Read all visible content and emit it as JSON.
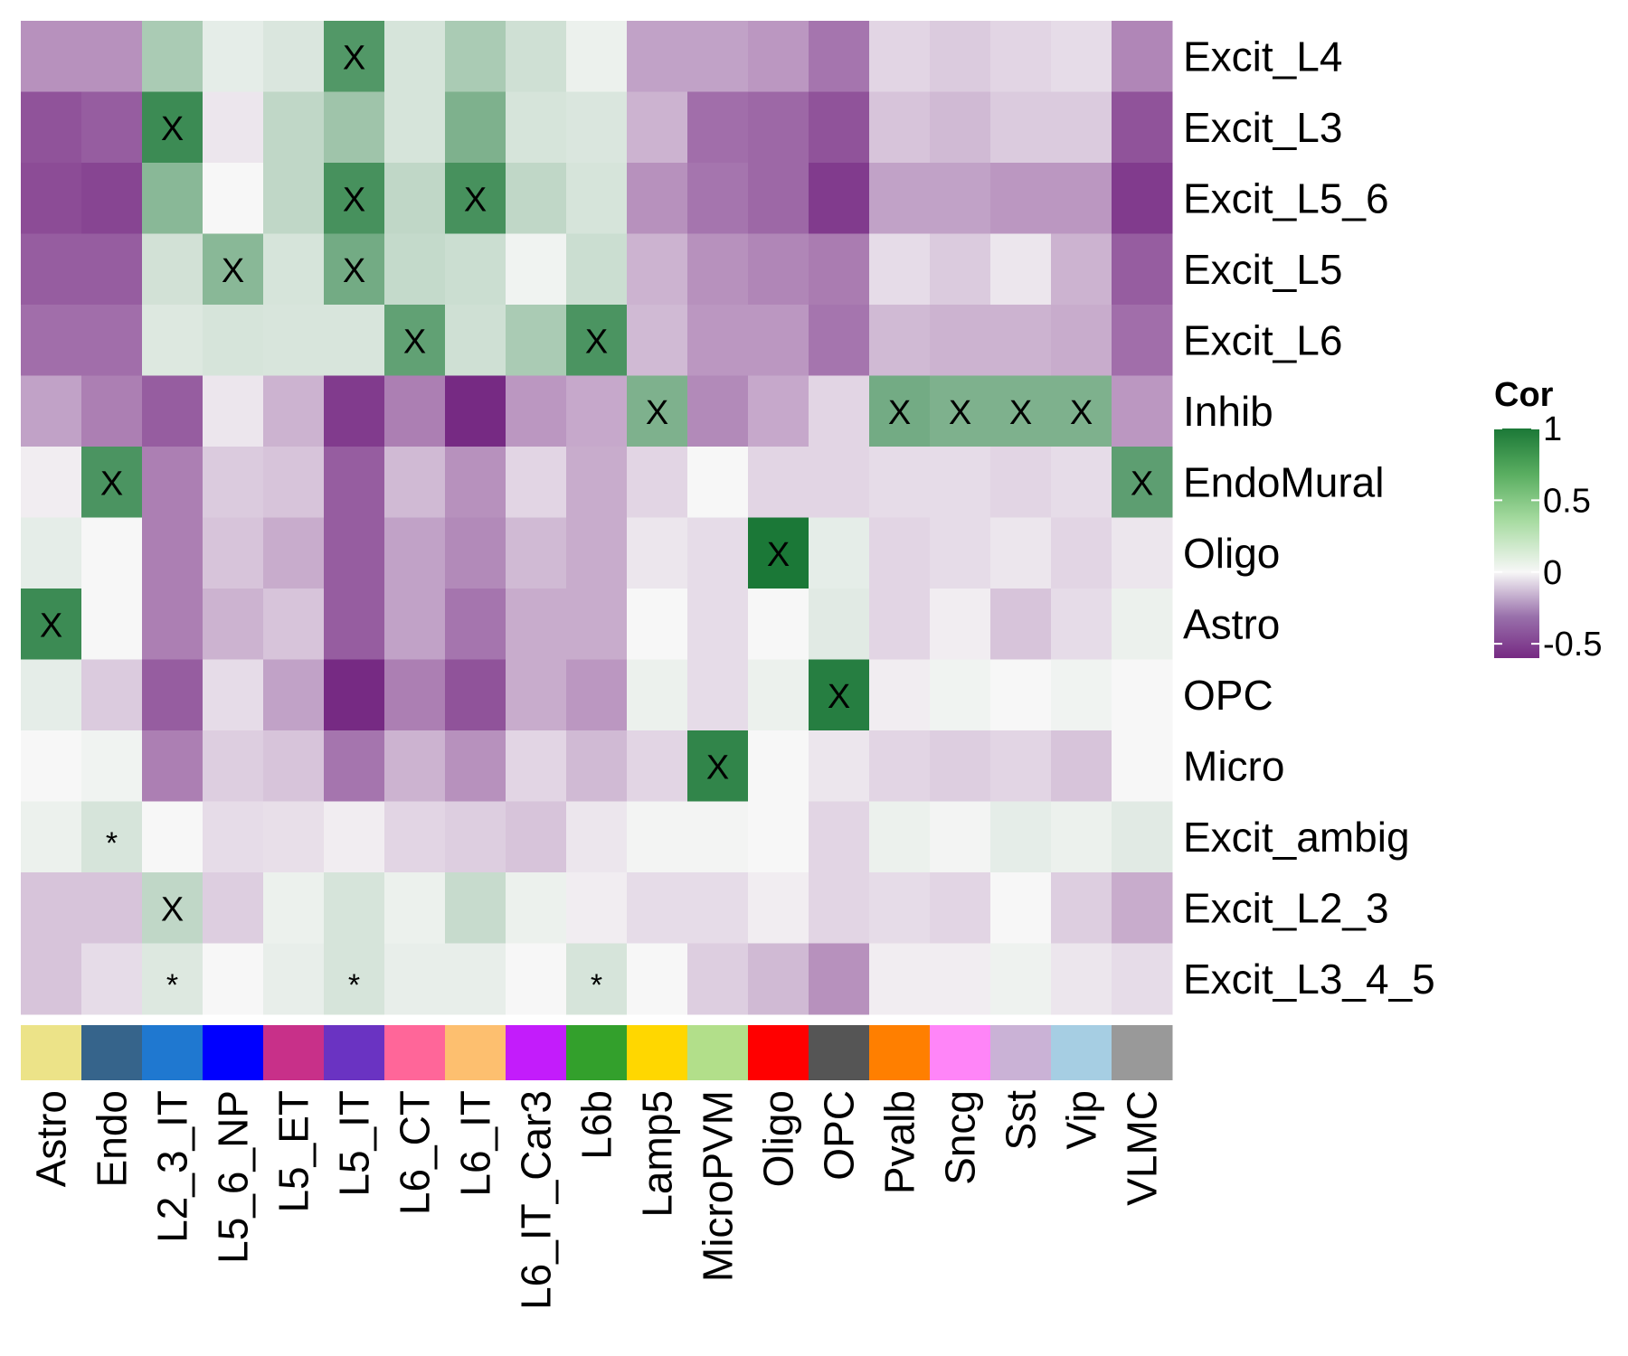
{
  "chart_data": {
    "type": "heatmap",
    "title": "",
    "xlabel": "",
    "ylabel": "",
    "columns": [
      "Astro",
      "Endo",
      "L2_3_IT",
      "L5_6_NP",
      "L5_ET",
      "L5_IT",
      "L6_CT",
      "L6_IT",
      "L6_IT_Car3",
      "L6b",
      "Lamp5",
      "MicroPVM",
      "Oligo",
      "OPC",
      "Pvalb",
      "Sncg",
      "Sst",
      "Vip",
      "VLMC"
    ],
    "column_colors": [
      "#ECE388",
      "#36648B",
      "#1F78D0",
      "#0000FF",
      "#C83089",
      "#6A33C2",
      "#FF6699",
      "#FDBF6F",
      "#C31CFB",
      "#33A02C",
      "#FFD700",
      "#B2DF8A",
      "#FF0000",
      "#555555",
      "#FF7F00",
      "#FF85F8",
      "#CAB2D6",
      "#A6CEE3",
      "#999999"
    ],
    "rows": [
      "Excit_L4",
      "Excit_L3",
      "Excit_L5_6",
      "Excit_L5",
      "Excit_L6",
      "Inhib",
      "EndoMural",
      "Oligo",
      "Astro",
      "OPC",
      "Micro",
      "Excit_ambig",
      "Excit_L2_3",
      "Excit_L3_4_5"
    ],
    "values": [
      [
        -0.3,
        -0.3,
        0.35,
        0.08,
        0.13,
        0.75,
        0.15,
        0.35,
        0.18,
        0.05,
        -0.25,
        -0.25,
        -0.28,
        -0.38,
        -0.1,
        -0.13,
        -0.1,
        -0.08,
        -0.33
      ],
      [
        -0.48,
        -0.45,
        0.85,
        -0.05,
        0.25,
        0.4,
        0.15,
        0.55,
        0.15,
        0.13,
        -0.2,
        -0.4,
        -0.42,
        -0.48,
        -0.15,
        -0.18,
        -0.13,
        -0.13,
        -0.48
      ],
      [
        -0.5,
        -0.52,
        0.5,
        0.0,
        0.25,
        0.8,
        0.25,
        0.8,
        0.25,
        0.15,
        -0.3,
        -0.38,
        -0.42,
        -0.55,
        -0.25,
        -0.25,
        -0.28,
        -0.28,
        -0.55
      ],
      [
        -0.45,
        -0.45,
        0.17,
        0.5,
        0.15,
        0.6,
        0.23,
        0.2,
        0.03,
        0.2,
        -0.2,
        -0.3,
        -0.33,
        -0.36,
        -0.08,
        -0.13,
        -0.05,
        -0.2,
        -0.45
      ],
      [
        -0.4,
        -0.4,
        0.12,
        0.15,
        0.14,
        0.14,
        0.68,
        0.18,
        0.35,
        0.78,
        -0.18,
        -0.28,
        -0.28,
        -0.38,
        -0.18,
        -0.2,
        -0.2,
        -0.22,
        -0.4
      ],
      [
        -0.25,
        -0.35,
        -0.45,
        -0.05,
        -0.2,
        -0.55,
        -0.35,
        -0.6,
        -0.28,
        -0.23,
        0.55,
        -0.32,
        -0.23,
        -0.1,
        0.6,
        0.55,
        0.55,
        0.55,
        -0.28
      ],
      [
        -0.03,
        0.78,
        -0.35,
        -0.13,
        -0.15,
        -0.45,
        -0.18,
        -0.3,
        -0.1,
        -0.22,
        -0.1,
        0.0,
        -0.1,
        -0.1,
        -0.08,
        -0.08,
        -0.1,
        -0.08,
        0.7
      ],
      [
        0.08,
        0.0,
        -0.35,
        -0.15,
        -0.22,
        -0.45,
        -0.25,
        -0.32,
        -0.18,
        -0.22,
        -0.05,
        -0.08,
        1.0,
        0.08,
        -0.1,
        -0.08,
        -0.05,
        -0.1,
        -0.05
      ],
      [
        0.85,
        0.0,
        -0.35,
        -0.2,
        -0.15,
        -0.45,
        -0.25,
        -0.38,
        -0.22,
        -0.22,
        0.0,
        -0.08,
        0.0,
        0.1,
        -0.1,
        -0.03,
        -0.15,
        -0.08,
        0.05
      ],
      [
        0.08,
        -0.13,
        -0.45,
        -0.08,
        -0.25,
        -0.6,
        -0.35,
        -0.48,
        -0.22,
        -0.28,
        0.05,
        -0.08,
        0.05,
        0.95,
        -0.03,
        0.03,
        0.0,
        0.03,
        0.0
      ],
      [
        0.0,
        0.03,
        -0.35,
        -0.12,
        -0.15,
        -0.38,
        -0.2,
        -0.3,
        -0.1,
        -0.18,
        -0.1,
        0.9,
        0.0,
        -0.05,
        -0.1,
        -0.12,
        -0.1,
        -0.15,
        0.0
      ],
      [
        0.05,
        0.15,
        0.0,
        -0.08,
        -0.07,
        -0.03,
        -0.1,
        -0.12,
        -0.15,
        -0.05,
        0.02,
        0.02,
        0.0,
        -0.1,
        0.05,
        0.02,
        0.08,
        0.05,
        0.1
      ],
      [
        -0.15,
        -0.15,
        0.25,
        -0.12,
        0.05,
        0.15,
        0.05,
        0.22,
        0.05,
        -0.03,
        -0.08,
        -0.08,
        -0.03,
        -0.1,
        -0.08,
        -0.1,
        0.0,
        -0.12,
        -0.22
      ],
      [
        -0.15,
        -0.08,
        0.12,
        0.0,
        0.07,
        0.15,
        0.07,
        0.07,
        0.0,
        0.15,
        0.0,
        -0.12,
        -0.18,
        -0.3,
        -0.03,
        -0.03,
        0.04,
        -0.05,
        -0.08
      ]
    ],
    "marks": [
      {
        "row": 0,
        "col": 5,
        "symbol": "X"
      },
      {
        "row": 1,
        "col": 2,
        "symbol": "X"
      },
      {
        "row": 2,
        "col": 5,
        "symbol": "X"
      },
      {
        "row": 2,
        "col": 7,
        "symbol": "X"
      },
      {
        "row": 3,
        "col": 3,
        "symbol": "X"
      },
      {
        "row": 3,
        "col": 5,
        "symbol": "X"
      },
      {
        "row": 4,
        "col": 6,
        "symbol": "X"
      },
      {
        "row": 4,
        "col": 9,
        "symbol": "X"
      },
      {
        "row": 5,
        "col": 10,
        "symbol": "X"
      },
      {
        "row": 5,
        "col": 14,
        "symbol": "X"
      },
      {
        "row": 5,
        "col": 15,
        "symbol": "X"
      },
      {
        "row": 5,
        "col": 16,
        "symbol": "X"
      },
      {
        "row": 5,
        "col": 17,
        "symbol": "X"
      },
      {
        "row": 6,
        "col": 1,
        "symbol": "X"
      },
      {
        "row": 6,
        "col": 18,
        "symbol": "X"
      },
      {
        "row": 7,
        "col": 12,
        "symbol": "X"
      },
      {
        "row": 8,
        "col": 0,
        "symbol": "X"
      },
      {
        "row": 9,
        "col": 13,
        "symbol": "X"
      },
      {
        "row": 10,
        "col": 11,
        "symbol": "X"
      },
      {
        "row": 11,
        "col": 1,
        "symbol": "*"
      },
      {
        "row": 12,
        "col": 2,
        "symbol": "X"
      },
      {
        "row": 13,
        "col": 2,
        "symbol": "*"
      },
      {
        "row": 13,
        "col": 5,
        "symbol": "*"
      },
      {
        "row": 13,
        "col": 9,
        "symbol": "*"
      }
    ],
    "color_scale": {
      "low_color": "#762A83",
      "mid_color": "#F7F7F7",
      "high_color": "#1B7837",
      "min": -0.6,
      "mid": 0,
      "max": 1.0
    },
    "legend": {
      "title": "Cor",
      "ticks": [
        "1",
        "0.5",
        "0",
        "-0.5"
      ],
      "tick_values": [
        1,
        0.5,
        0,
        -0.5
      ],
      "position": "right"
    }
  }
}
